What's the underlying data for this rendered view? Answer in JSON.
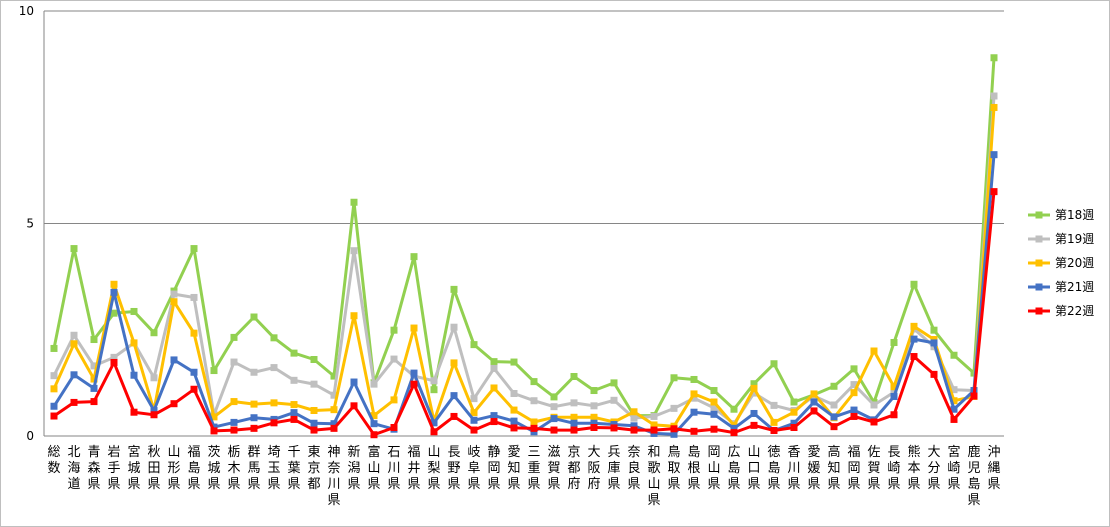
{
  "chart_data": {
    "type": "line",
    "title": "",
    "xlabel": "",
    "ylabel": "",
    "ylim": [
      0,
      10
    ],
    "yticks": [
      "0",
      "5",
      "10"
    ],
    "grid": true,
    "legend_position": "right",
    "categories": [
      "総数",
      "北海道",
      "青森県",
      "岩手県",
      "宮城県",
      "秋田県",
      "山形県",
      "福島県",
      "茨城県",
      "栃木県",
      "群馬県",
      "埼玉県",
      "千葉県",
      "東京都",
      "神奈川県",
      "新潟県",
      "富山県",
      "石川県",
      "福井県",
      "山梨県",
      "長野県",
      "岐阜県",
      "静岡県",
      "愛知県",
      "三重県",
      "滋賀県",
      "京都府",
      "大阪府",
      "兵庫県",
      "奈良県",
      "和歌山県",
      "鳥取県",
      "島根県",
      "岡山県",
      "広島県",
      "山口県",
      "徳島県",
      "香川県",
      "愛媛県",
      "高知県",
      "福岡県",
      "佐賀県",
      "長崎県",
      "熊本県",
      "大分県",
      "宮崎県",
      "鹿児島県",
      "沖縄県"
    ],
    "series": [
      {
        "name": "第18週",
        "color": "#92d050",
        "marker": "square",
        "values": [
          2.06,
          4.41,
          2.27,
          2.89,
          2.93,
          2.43,
          3.41,
          4.41,
          1.54,
          2.32,
          2.8,
          2.31,
          1.95,
          1.8,
          1.41,
          5.5,
          1.25,
          2.49,
          4.22,
          1.09,
          3.45,
          2.15,
          1.75,
          1.74,
          1.28,
          0.92,
          1.4,
          1.07,
          1.25,
          0.48,
          0.48,
          1.37,
          1.33,
          1.07,
          0.63,
          1.23,
          1.7,
          0.8,
          0.97,
          1.17,
          1.58,
          0.79,
          2.2,
          3.57,
          2.49,
          1.9,
          1.48,
          8.9
        ]
      },
      {
        "name": "第19週",
        "color": "#bfbfbf",
        "marker": "square",
        "values": [
          1.42,
          2.37,
          1.65,
          1.85,
          2.19,
          1.37,
          3.34,
          3.26,
          0.5,
          1.74,
          1.5,
          1.61,
          1.31,
          1.22,
          0.96,
          4.36,
          1.22,
          1.81,
          1.41,
          1.3,
          2.56,
          0.88,
          1.59,
          1.0,
          0.83,
          0.69,
          0.78,
          0.71,
          0.84,
          0.42,
          0.46,
          0.65,
          0.89,
          0.66,
          0.29,
          1.01,
          0.72,
          0.6,
          0.94,
          0.73,
          1.21,
          0.73,
          1.03,
          2.52,
          2.1,
          1.09,
          1.07,
          8.0
        ]
      },
      {
        "name": "第20週",
        "color": "#ffc000",
        "marker": "square",
        "values": [
          1.11,
          2.17,
          1.34,
          3.57,
          2.19,
          0.6,
          3.16,
          2.42,
          0.45,
          0.81,
          0.75,
          0.78,
          0.74,
          0.6,
          0.62,
          2.83,
          0.48,
          0.85,
          2.54,
          0.35,
          1.72,
          0.55,
          1.13,
          0.61,
          0.33,
          0.44,
          0.44,
          0.44,
          0.33,
          0.57,
          0.26,
          0.23,
          0.99,
          0.8,
          0.25,
          1.12,
          0.32,
          0.56,
          0.99,
          0.43,
          1.02,
          2.0,
          1.16,
          2.58,
          2.27,
          0.83,
          0.93,
          7.73
        ]
      },
      {
        "name": "第21週",
        "color": "#4472c4",
        "marker": "square",
        "values": [
          0.7,
          1.44,
          1.12,
          3.38,
          1.43,
          0.6,
          1.79,
          1.5,
          0.21,
          0.32,
          0.43,
          0.39,
          0.55,
          0.3,
          0.29,
          1.27,
          0.29,
          0.16,
          1.48,
          0.31,
          0.95,
          0.37,
          0.48,
          0.35,
          0.1,
          0.41,
          0.3,
          0.3,
          0.27,
          0.24,
          0.06,
          0.04,
          0.56,
          0.51,
          0.18,
          0.53,
          0.13,
          0.3,
          0.8,
          0.45,
          0.61,
          0.38,
          0.93,
          2.28,
          2.19,
          0.63,
          1.07,
          6.62
        ]
      },
      {
        "name": "第22週",
        "color": "#ff0000",
        "marker": "square",
        "values": [
          0.47,
          0.79,
          0.81,
          1.73,
          0.56,
          0.5,
          0.76,
          1.1,
          0.12,
          0.14,
          0.18,
          0.31,
          0.39,
          0.14,
          0.18,
          0.71,
          0.03,
          0.2,
          1.22,
          0.1,
          0.46,
          0.14,
          0.34,
          0.19,
          0.18,
          0.14,
          0.14,
          0.2,
          0.19,
          0.14,
          0.14,
          0.17,
          0.11,
          0.16,
          0.08,
          0.25,
          0.13,
          0.2,
          0.59,
          0.22,
          0.46,
          0.33,
          0.5,
          1.87,
          1.45,
          0.39,
          0.94,
          5.75
        ]
      }
    ]
  }
}
